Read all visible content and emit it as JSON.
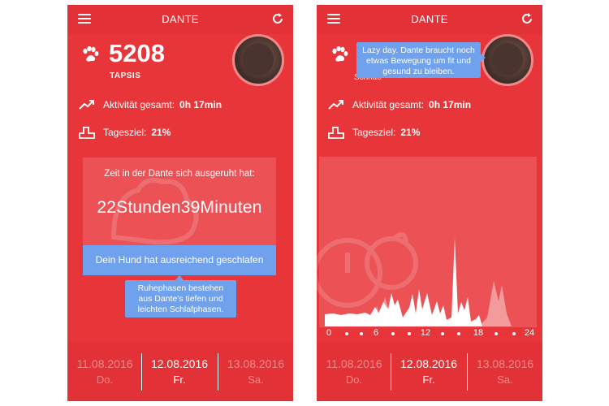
{
  "left_screen": {
    "header": {
      "title": "DANTE",
      "menu_icon": "hamburger-icon",
      "refresh_icon": "refresh-icon"
    },
    "steps": {
      "value": "5208",
      "label": "TAPSIS",
      "icon": "paw-icon"
    },
    "activity": {
      "label": "Aktivität gesamt:",
      "value": "0h 17min",
      "icon": "trend-up-icon"
    },
    "daily_goal": {
      "label": "Tagesziel:",
      "value": "21%",
      "icon": "podium-icon"
    },
    "rest": {
      "heading": "Zeit in der Dante sich ausgeruht hat:",
      "time": "22Stunden39Minuten",
      "button_label": "Dein Hund hat ausreichend geschlafen",
      "tooltip": "Ruhephasen bestehen aus Dante's tiefen und leichten Schlafphasen."
    },
    "dates": [
      {
        "date": "11.08.2016",
        "weekday": "Do.",
        "current": false
      },
      {
        "date": "12.08.2016",
        "weekday": "Fr.",
        "current": true
      },
      {
        "date": "13.08.2016",
        "weekday": "Sa.",
        "current": false
      }
    ]
  },
  "right_screen": {
    "header": {
      "title": "DANTE",
      "menu_icon": "hamburger-icon",
      "refresh_icon": "refresh-icon"
    },
    "steps_partial_label": "Schritte",
    "tooltip": "Lazy day. Dante braucht noch etwas Bewegung um fit und gesund zu bleiben.",
    "activity": {
      "label": "Aktivität gesamt:",
      "value": "0h 17min",
      "icon": "trend-up-icon"
    },
    "daily_goal": {
      "label": "Tagesziel:",
      "value": "21%",
      "icon": "podium-icon"
    },
    "x_ticks": [
      "0",
      "6",
      "12",
      "18",
      "24"
    ],
    "dates": [
      {
        "date": "11.08.2016",
        "weekday": "Do.",
        "current": false
      },
      {
        "date": "12.08.2016",
        "weekday": "Fr.",
        "current": true
      },
      {
        "date": "13.08.2016",
        "weekday": "Sa.",
        "current": false
      }
    ]
  },
  "colors": {
    "background": "#e8353a",
    "header": "#e23237",
    "accent_blue": "#6fa1ec"
  }
}
